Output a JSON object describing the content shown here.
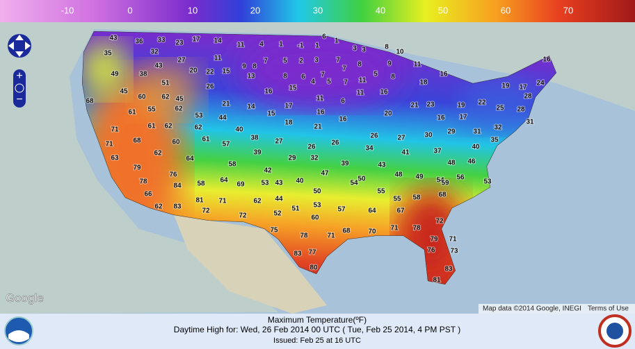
{
  "colorbar": {
    "labels": [
      -10,
      0,
      10,
      20,
      30,
      40,
      50,
      60,
      70
    ]
  },
  "map": {
    "labels": [
      43,
      36,
      33,
      23,
      17,
      14,
      11,
      4,
      1,
      -1,
      1,
      6,
      1,
      3,
      3,
      8,
      10,
      35,
      32,
      27,
      11,
      7,
      5,
      2,
      3,
      7,
      8,
      9,
      11,
      16,
      49,
      38,
      43,
      20,
      22,
      15,
      9,
      8,
      13,
      8,
      6,
      7,
      7,
      5,
      8,
      16,
      45,
      51,
      26,
      16,
      15,
      4,
      5,
      7,
      11,
      11,
      16,
      18,
      19,
      17,
      24,
      28,
      68,
      60,
      62,
      45,
      21,
      14,
      17,
      11,
      6,
      21,
      23,
      19,
      22,
      25,
      28,
      61,
      55,
      62,
      53,
      44,
      15,
      16,
      16,
      20,
      16,
      17,
      31,
      71,
      61,
      62,
      62,
      40,
      18,
      21,
      32,
      68,
      60,
      61,
      57,
      38,
      27,
      26,
      26,
      26,
      27,
      30,
      29,
      31,
      35,
      71,
      62,
      39,
      29,
      32,
      39,
      34,
      41,
      37,
      40,
      63,
      64,
      58,
      43,
      48,
      46,
      79,
      76,
      42,
      47,
      50,
      48,
      49,
      54,
      56,
      53,
      78,
      84,
      58,
      64,
      69,
      53,
      43,
      40,
      54,
      59,
      66,
      81,
      71,
      62,
      44,
      50,
      55,
      55,
      58,
      68,
      62,
      83,
      72,
      72,
      52,
      51,
      53,
      57,
      64,
      67,
      60,
      72,
      75,
      68,
      70,
      71,
      78,
      78,
      71,
      79,
      71,
      76,
      73,
      83,
      77,
      83,
      80,
      81
    ],
    "provider": "Google",
    "attribution": "Map data ©2014 Google, INEGI",
    "terms": "Terms of Use"
  },
  "footer": {
    "title": "Maximum Temperature(ºF)",
    "subtitle": "Daytime High for: Wed, 26 Feb 2014 00 UTC ( Tue, Feb 25 2014,   4 PM PST )",
    "issued": "Issued: Feb 25 at 16 UTC"
  }
}
